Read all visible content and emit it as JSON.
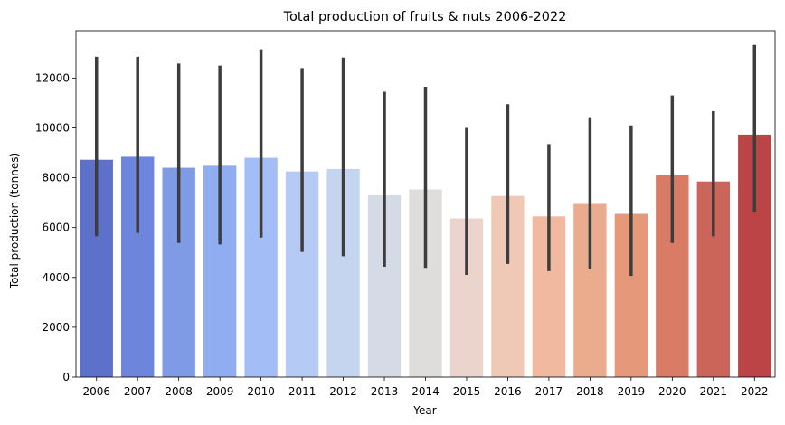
{
  "chart_data": {
    "type": "bar",
    "title": "Total production of fruits & nuts 2006-2022",
    "xlabel": "Year",
    "ylabel": "Total production (tonnes)",
    "ylim": [
      0,
      13900
    ],
    "yticks": [
      0,
      2000,
      4000,
      6000,
      8000,
      10000,
      12000
    ],
    "yticklabels": [
      "0",
      "2000",
      "4000",
      "6000",
      "8000",
      "10000",
      "12000"
    ],
    "grid": false,
    "legend": "none",
    "error_bar_color": "#3d3d3d",
    "categories": [
      "2006",
      "2007",
      "2008",
      "2009",
      "2010",
      "2011",
      "2012",
      "2013",
      "2014",
      "2015",
      "2016",
      "2017",
      "2018",
      "2019",
      "2020",
      "2021",
      "2022"
    ],
    "values": [
      8720,
      8840,
      8400,
      8480,
      8800,
      8250,
      8350,
      7300,
      7530,
      6370,
      7270,
      6450,
      6950,
      6550,
      8110,
      7850,
      9730
    ],
    "error_low": [
      5650,
      5780,
      5380,
      5320,
      5600,
      5020,
      4850,
      4430,
      4380,
      4100,
      4540,
      4250,
      4320,
      4060,
      5380,
      5650,
      6640
    ],
    "error_high": [
      12850,
      12850,
      12580,
      12500,
      13150,
      12400,
      12820,
      11450,
      11650,
      10000,
      10950,
      9350,
      10430,
      10100,
      11300,
      10670,
      13330
    ],
    "bar_colors": [
      "#5d71cb",
      "#6d86db",
      "#7f9be6",
      "#91adf1",
      "#a3bdf7",
      "#b5cbf5",
      "#c4d5f0",
      "#d4dbe7",
      "#dfdcdc",
      "#ead4cc",
      "#f0c8b6",
      "#f1b9a0",
      "#ebab8d",
      "#e5997a",
      "#da7b66",
      "#cb6559",
      "#bc4446"
    ]
  }
}
